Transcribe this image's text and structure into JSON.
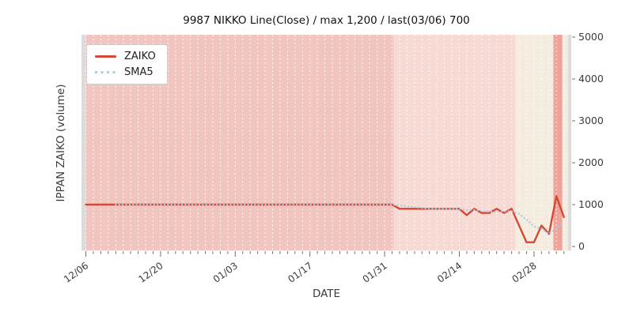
{
  "window": {
    "kind": "chart-figure",
    "background": "#ffffff"
  },
  "chart_data": {
    "type": "line",
    "title": "9987 NIKKO Line(Close) / max 1,200 / last(03/06) 700",
    "xlabel": "DATE",
    "ylabel": "IPPAN ZAIKO (volume)",
    "ylim": [
      0,
      5000
    ],
    "yticks": [
      0,
      1000,
      2000,
      3000,
      4000,
      5000
    ],
    "grid": "vertical-daily-white-dashed",
    "legend_position": "upper-left",
    "x_major_indices": [
      0,
      10,
      20,
      30,
      40,
      50,
      60
    ],
    "x_major_labels": [
      "12/06",
      "12/20",
      "01/03",
      "01/17",
      "01/31",
      "02/14",
      "02/28"
    ],
    "x": [
      "12/06",
      "12/09",
      "12/10",
      "12/11",
      "12/12",
      "12/13",
      "12/16",
      "12/17",
      "12/18",
      "12/19",
      "12/20",
      "12/23",
      "12/24",
      "12/25",
      "12/26",
      "12/27",
      "12/30",
      "12/31",
      "01/01",
      "01/02",
      "01/03",
      "01/06",
      "01/07",
      "01/08",
      "01/09",
      "01/10",
      "01/13",
      "01/14",
      "01/15",
      "01/16",
      "01/17",
      "01/20",
      "01/21",
      "01/22",
      "01/23",
      "01/24",
      "01/27",
      "01/28",
      "01/29",
      "01/30",
      "01/31",
      "02/03",
      "02/04",
      "02/05",
      "02/06",
      "02/07",
      "02/10",
      "02/11",
      "02/12",
      "02/13",
      "02/14",
      "02/17",
      "02/18",
      "02/19",
      "02/20",
      "02/21",
      "02/24",
      "02/25",
      "02/26",
      "02/27",
      "02/28",
      "03/03",
      "03/04",
      "03/05",
      "03/06"
    ],
    "series": [
      {
        "name": "ZAIKO",
        "style": "solid",
        "color": "#d54836",
        "values": [
          1000,
          1000,
          1000,
          1000,
          1000,
          1000,
          1000,
          1000,
          1000,
          1000,
          1000,
          1000,
          1000,
          1000,
          1000,
          1000,
          1000,
          1000,
          1000,
          1000,
          1000,
          1000,
          1000,
          1000,
          1000,
          1000,
          1000,
          1000,
          1000,
          1000,
          1000,
          1000,
          1000,
          1000,
          1000,
          1000,
          1000,
          1000,
          1000,
          1000,
          1000,
          1000,
          900,
          900,
          900,
          900,
          900,
          900,
          900,
          900,
          900,
          750,
          900,
          800,
          800,
          900,
          800,
          900,
          500,
          100,
          100,
          500,
          300,
          1200,
          700
        ]
      },
      {
        "name": "SMA5",
        "style": "dotted",
        "color": "#a8cbe0",
        "values": [
          null,
          null,
          null,
          null,
          1000,
          1000,
          1000,
          1000,
          1000,
          1000,
          1000,
          1000,
          1000,
          1000,
          1000,
          1000,
          1000,
          1000,
          1000,
          1000,
          1000,
          1000,
          1000,
          1000,
          1000,
          1000,
          1000,
          1000,
          1000,
          1000,
          1000,
          1000,
          1000,
          1000,
          1000,
          1000,
          1000,
          1000,
          1000,
          1000,
          1000,
          1000,
          980,
          960,
          940,
          920,
          900,
          900,
          900,
          900,
          900,
          870,
          870,
          850,
          830,
          830,
          840,
          840,
          780,
          640,
          480,
          420,
          300,
          440,
          560
        ]
      }
    ],
    "background_bands": [
      {
        "from_day": -0.6,
        "to_day": -0.02,
        "color": "#dcdcdc"
      },
      {
        "from_day": -0.02,
        "to_day": 41.2,
        "color": "#f2c6c0"
      },
      {
        "from_day": 41.2,
        "to_day": 57.5,
        "color": "#f8dad5"
      },
      {
        "from_day": 57.5,
        "to_day": 62.6,
        "color": "#f4ecdf"
      },
      {
        "from_day": 62.6,
        "to_day": 63.8,
        "color": "#efa39a"
      },
      {
        "from_day": 63.8,
        "to_day": 64.55,
        "color": "#f4ecdf"
      },
      {
        "from_day": 64.55,
        "to_day": 65.2,
        "color": "#dcdcdc"
      }
    ],
    "last_value_note": "last(03/06) 700",
    "max_value_note": "max 1,200"
  },
  "legend": {
    "items": [
      {
        "label": "ZAIKO",
        "swatch": "solid-red-line"
      },
      {
        "label": "SMA5",
        "swatch": "dotted-blue-line"
      }
    ]
  },
  "colors": {
    "zaiko_line": "#d54836",
    "sma5_dots": "#a8cbe0",
    "band_pink": "#f2c6c0",
    "band_light_pink": "#f8dad5",
    "band_cream": "#f4ecdf",
    "band_salmon": "#efa39a",
    "band_gray": "#dcdcdc",
    "tick_text": "#3b3b3b",
    "tick_mark": "#707070"
  }
}
